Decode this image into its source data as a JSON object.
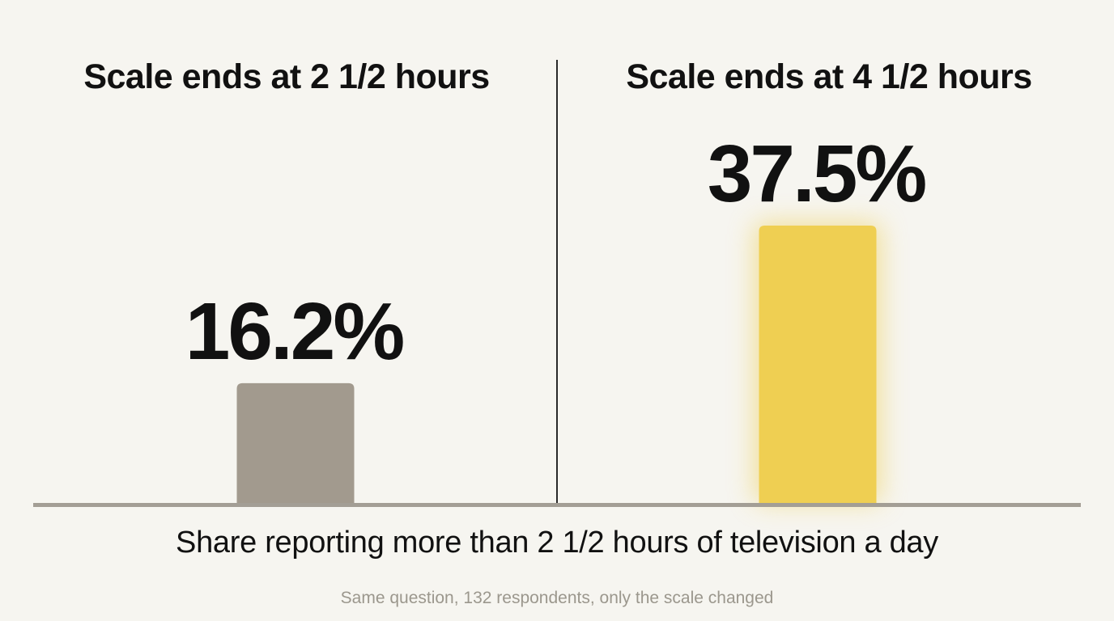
{
  "chart_data": {
    "type": "bar",
    "panels": [
      {
        "title": "Scale ends at 2 1/2 hours",
        "value": 16.2,
        "value_label": "16.2%",
        "color": "#a29a8e",
        "highlight": false
      },
      {
        "title": "Scale ends at 4 1/2 hours",
        "value": 37.5,
        "value_label": "37.5%",
        "color": "#efcf52",
        "highlight": true
      }
    ],
    "unit": "%",
    "xlabel": "Share reporting more than 2 1/2 hours of television a day",
    "footnote": "Same question, 132 respondents, only the scale changed",
    "ylim": [
      0,
      37.5
    ],
    "grid": false,
    "legend": "none",
    "baseline_color": "#a39e95"
  }
}
